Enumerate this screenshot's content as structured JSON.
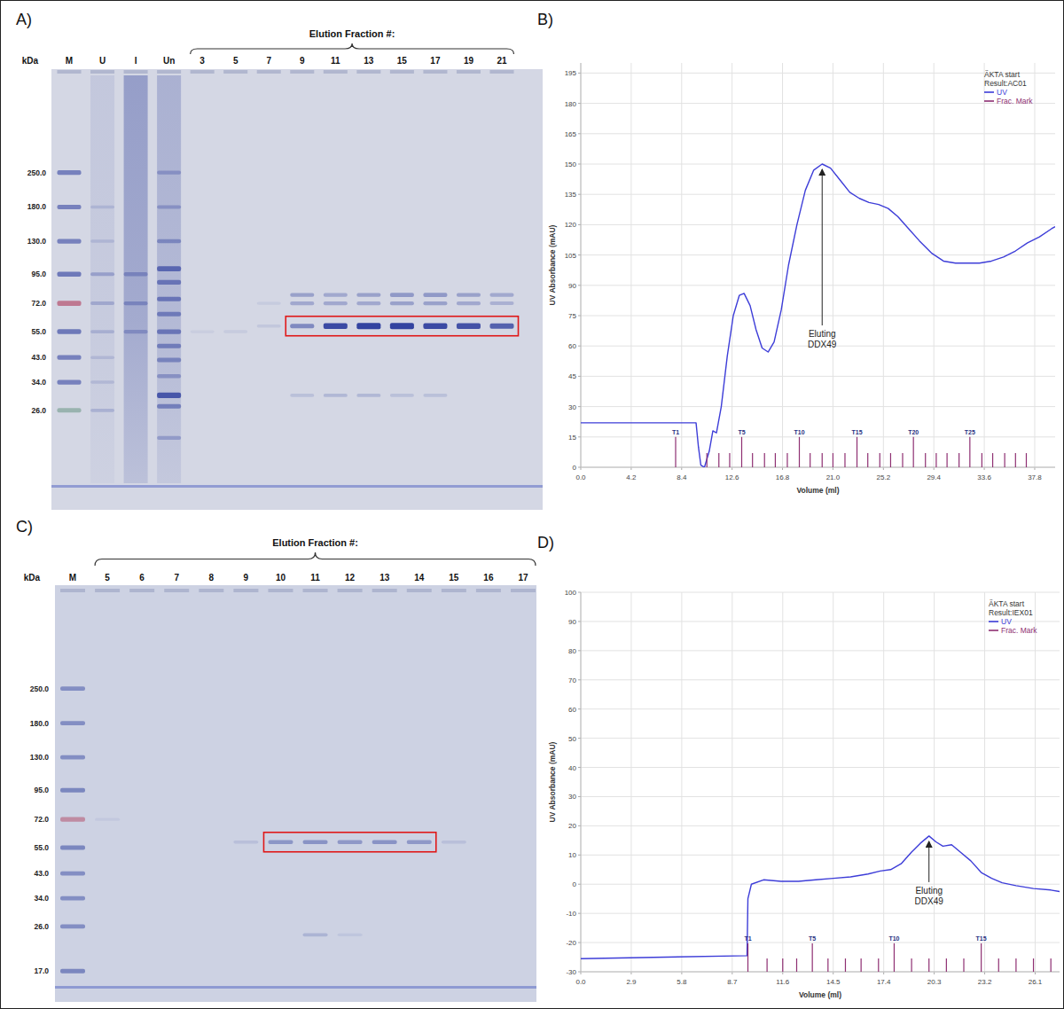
{
  "panels": [
    "A)",
    "B)",
    "C)",
    "D)"
  ],
  "gels": [
    {
      "header": "Elution Fraction #:",
      "axis_label": "kDa",
      "kda_range": [
        630,
        13
      ],
      "band_color": "#2a3b9c",
      "ticks": [
        {
          "value": 250,
          "label": "250.0"
        },
        {
          "value": 180,
          "label": "180.0"
        },
        {
          "value": 130,
          "label": "130.0"
        },
        {
          "value": 95,
          "label": "95.0"
        },
        {
          "value": 72,
          "label": "72.0"
        },
        {
          "value": 55,
          "label": "55.0"
        },
        {
          "value": 43,
          "label": "43.0"
        },
        {
          "value": 34,
          "label": "34.0"
        },
        {
          "value": 26,
          "label": "26.0"
        }
      ],
      "lanes": [
        {
          "label": "M",
          "bands": [
            {
              "kda": 250,
              "intensity": 0.55
            },
            {
              "kda": 180,
              "intensity": 0.55
            },
            {
              "kda": 130,
              "intensity": 0.55
            },
            {
              "kda": 95,
              "intensity": 0.6
            },
            {
              "kda": 72,
              "intensity": 0.7,
              "color": "#b5506e"
            },
            {
              "kda": 55,
              "intensity": 0.6
            },
            {
              "kda": 43,
              "intensity": 0.55
            },
            {
              "kda": 34,
              "intensity": 0.55
            },
            {
              "kda": 26,
              "intensity": 0.5,
              "color": "#5e8f7a"
            }
          ]
        },
        {
          "label": "U",
          "smear": 0.12,
          "bands": [
            {
              "kda": 180,
              "intensity": 0.15
            },
            {
              "kda": 130,
              "intensity": 0.15
            },
            {
              "kda": 95,
              "intensity": 0.3
            },
            {
              "kda": 72,
              "intensity": 0.25
            },
            {
              "kda": 55,
              "intensity": 0.2
            },
            {
              "kda": 43,
              "intensity": 0.15
            },
            {
              "kda": 34,
              "intensity": 0.15
            },
            {
              "kda": 26,
              "intensity": 0.2
            }
          ]
        },
        {
          "label": "I",
          "smear": 0.45,
          "bands": [
            {
              "kda": 95,
              "intensity": 0.35
            },
            {
              "kda": 72,
              "intensity": 0.35
            },
            {
              "kda": 55,
              "intensity": 0.3
            }
          ]
        },
        {
          "label": "Un",
          "smear": 0.3,
          "bands": [
            {
              "kda": 250,
              "intensity": 0.3
            },
            {
              "kda": 180,
              "intensity": 0.3
            },
            {
              "kda": 130,
              "intensity": 0.4
            },
            {
              "kda": 100,
              "intensity": 0.65
            },
            {
              "kda": 88,
              "intensity": 0.55
            },
            {
              "kda": 75,
              "intensity": 0.55
            },
            {
              "kda": 65,
              "intensity": 0.5
            },
            {
              "kda": 55,
              "intensity": 0.55
            },
            {
              "kda": 48,
              "intensity": 0.5
            },
            {
              "kda": 42,
              "intensity": 0.45
            },
            {
              "kda": 36,
              "intensity": 0.35
            },
            {
              "kda": 30,
              "intensity": 0.8
            },
            {
              "kda": 27,
              "intensity": 0.5
            },
            {
              "kda": 20,
              "intensity": 0.3
            }
          ]
        }
      ],
      "fractions": [
        {
          "label": "3",
          "bands": [
            {
              "kda": 55,
              "intensity": 0.06
            }
          ]
        },
        {
          "label": "5",
          "bands": [
            {
              "kda": 55,
              "intensity": 0.08
            }
          ]
        },
        {
          "label": "7",
          "bands": [
            {
              "kda": 72,
              "intensity": 0.08
            },
            {
              "kda": 58,
              "intensity": 0.1
            }
          ]
        },
        {
          "label": "9",
          "bands": [
            {
              "kda": 78,
              "intensity": 0.35
            },
            {
              "kda": 72,
              "intensity": 0.3
            },
            {
              "kda": 58,
              "intensity": 0.5,
              "boxed": true
            },
            {
              "kda": 30,
              "intensity": 0.15
            }
          ]
        },
        {
          "label": "11",
          "bands": [
            {
              "kda": 78,
              "intensity": 0.3
            },
            {
              "kda": 72,
              "intensity": 0.3
            },
            {
              "kda": 58,
              "intensity": 0.9,
              "boxed": true
            },
            {
              "kda": 30,
              "intensity": 0.2
            }
          ]
        },
        {
          "label": "13",
          "bands": [
            {
              "kda": 78,
              "intensity": 0.35
            },
            {
              "kda": 72,
              "intensity": 0.3
            },
            {
              "kda": 58,
              "intensity": 0.95,
              "boxed": true
            },
            {
              "kda": 30,
              "intensity": 0.2
            }
          ]
        },
        {
          "label": "15",
          "bands": [
            {
              "kda": 78,
              "intensity": 0.4
            },
            {
              "kda": 72,
              "intensity": 0.35
            },
            {
              "kda": 58,
              "intensity": 0.95,
              "boxed": true
            },
            {
              "kda": 30,
              "intensity": 0.15
            }
          ]
        },
        {
          "label": "17",
          "bands": [
            {
              "kda": 78,
              "intensity": 0.4
            },
            {
              "kda": 72,
              "intensity": 0.35
            },
            {
              "kda": 58,
              "intensity": 0.9,
              "boxed": true
            },
            {
              "kda": 30,
              "intensity": 0.15
            }
          ]
        },
        {
          "label": "19",
          "bands": [
            {
              "kda": 78,
              "intensity": 0.35
            },
            {
              "kda": 72,
              "intensity": 0.3
            },
            {
              "kda": 58,
              "intensity": 0.85,
              "boxed": true
            }
          ]
        },
        {
          "label": "21",
          "bands": [
            {
              "kda": 78,
              "intensity": 0.3
            },
            {
              "kda": 72,
              "intensity": 0.25
            },
            {
              "kda": 58,
              "intensity": 0.75,
              "boxed": true
            }
          ]
        }
      ]
    },
    {
      "header": "Elution Fraction #:",
      "axis_label": "kDa",
      "kda_range": [
        615,
        15
      ],
      "band_color": "#2a3b9c",
      "ticks": [
        {
          "value": 250,
          "label": "250.0"
        },
        {
          "value": 180,
          "label": "180.0"
        },
        {
          "value": 130,
          "label": "130.0"
        },
        {
          "value": 95,
          "label": "95.0"
        },
        {
          "value": 72,
          "label": "72.0"
        },
        {
          "value": 55,
          "label": "55.0"
        },
        {
          "value": 43,
          "label": "43.0"
        },
        {
          "value": 34,
          "label": "34.0"
        },
        {
          "value": 26,
          "label": "26.0"
        },
        {
          "value": 17,
          "label": "17.0"
        }
      ],
      "lanes": [
        {
          "label": "M",
          "bands": [
            {
              "kda": 250,
              "intensity": 0.45
            },
            {
              "kda": 180,
              "intensity": 0.45
            },
            {
              "kda": 130,
              "intensity": 0.45
            },
            {
              "kda": 95,
              "intensity": 0.5
            },
            {
              "kda": 72,
              "intensity": 0.55,
              "color": "#b5506e"
            },
            {
              "kda": 55,
              "intensity": 0.5
            },
            {
              "kda": 43,
              "intensity": 0.45
            },
            {
              "kda": 34,
              "intensity": 0.45
            },
            {
              "kda": 26,
              "intensity": 0.45
            },
            {
              "kda": 17,
              "intensity": 0.5
            }
          ]
        }
      ],
      "fractions": [
        {
          "label": "5",
          "bands": [
            {
              "kda": 72,
              "intensity": 0.06
            }
          ]
        },
        {
          "label": "6",
          "bands": []
        },
        {
          "label": "7",
          "bands": []
        },
        {
          "label": "8",
          "bands": []
        },
        {
          "label": "9",
          "bands": [
            {
              "kda": 58,
              "intensity": 0.12
            }
          ]
        },
        {
          "label": "10",
          "bands": [
            {
              "kda": 58,
              "intensity": 0.4,
              "boxed": true
            }
          ]
        },
        {
          "label": "11",
          "bands": [
            {
              "kda": 58,
              "intensity": 0.42,
              "boxed": true
            },
            {
              "kda": 24,
              "intensity": 0.2
            }
          ]
        },
        {
          "label": "12",
          "bands": [
            {
              "kda": 58,
              "intensity": 0.38,
              "boxed": true
            },
            {
              "kda": 24,
              "intensity": 0.08
            }
          ]
        },
        {
          "label": "13",
          "bands": [
            {
              "kda": 58,
              "intensity": 0.42,
              "boxed": true
            }
          ]
        },
        {
          "label": "14",
          "bands": [
            {
              "kda": 58,
              "intensity": 0.38,
              "boxed": true
            }
          ]
        },
        {
          "label": "15",
          "bands": [
            {
              "kda": 58,
              "intensity": 0.12
            }
          ]
        },
        {
          "label": "16",
          "bands": []
        },
        {
          "label": "17",
          "bands": []
        }
      ]
    }
  ],
  "chart_data": [
    {
      "type": "line",
      "x_label": "Volume (ml)",
      "y_label": "UV Absorbance (mAU)",
      "grid": true,
      "legend": "upper right",
      "legend_header": [
        "ÄKTA start",
        "Result:AC01"
      ],
      "xlim": [
        0,
        39.5
      ],
      "ylim": [
        0,
        200
      ],
      "xticks": [
        {
          "value": 0,
          "label": "0.0"
        },
        4.2,
        8.4,
        12.6,
        16.8,
        {
          "value": 21,
          "label": "21.0"
        },
        25.2,
        29.4,
        33.6,
        37.8
      ],
      "yticks": [
        0,
        15,
        30,
        45,
        60,
        75,
        90,
        105,
        120,
        135,
        150,
        165,
        180,
        195
      ],
      "series": [
        {
          "name": "UV",
          "color": "#3d3dd8",
          "x": [
            0,
            9.6,
            9.8,
            10.0,
            10.3,
            10.7,
            11.0,
            11.3,
            11.7,
            12.2,
            12.7,
            13.2,
            13.6,
            14.1,
            14.6,
            15.1,
            15.6,
            16.1,
            16.7,
            17.3,
            18.0,
            18.7,
            19.4,
            20.1,
            20.8,
            21.6,
            22.4,
            23.2,
            24.0,
            24.8,
            25.6,
            26.4,
            27.3,
            28.2,
            29.2,
            30.2,
            31.2,
            32.2,
            33.2,
            34.2,
            35.2,
            36.2,
            37.2,
            38.2,
            39.2,
            39.5
          ],
          "values": [
            22,
            22,
            10,
            1,
            0,
            8,
            18,
            17,
            30,
            55,
            75,
            85,
            86,
            80,
            68,
            59,
            57,
            62,
            78,
            100,
            120,
            137,
            147,
            150,
            148,
            142,
            136,
            133,
            131,
            130,
            128,
            124,
            118,
            112,
            106,
            102,
            101,
            101,
            101,
            102,
            104,
            107,
            111,
            114,
            118,
            119
          ]
        },
        {
          "name": "Frac. Mark",
          "type": "rug",
          "color": "#8e2f72",
          "x": [
            7.9,
            10.5,
            11.5,
            12.4,
            13.4,
            14.3,
            15.3,
            16.2,
            17.2,
            18.2,
            19.1,
            20.1,
            21.0,
            22.0,
            23.0,
            23.9,
            24.9,
            25.8,
            26.8,
            27.7,
            28.7,
            29.6,
            30.5,
            31.5,
            32.4,
            33.4,
            34.3,
            35.3,
            36.2,
            37.1
          ],
          "labels": [
            "T1",
            null,
            null,
            null,
            "T5",
            null,
            null,
            null,
            null,
            "T10",
            null,
            null,
            null,
            null,
            "T15",
            null,
            null,
            null,
            null,
            "T20",
            null,
            null,
            null,
            null,
            "T25",
            null,
            null,
            null,
            null,
            null
          ]
        }
      ],
      "annotations": [
        {
          "lines": [
            "Eluting",
            "DDX49"
          ],
          "x": 20.1,
          "y": 150
        }
      ]
    },
    {
      "type": "line",
      "x_label": "Volume (ml)",
      "y_label": "UV Absorbance (mAU)",
      "grid": true,
      "legend": "upper right",
      "legend_header": [
        "ÄKTA start",
        "Result:IEX01"
      ],
      "xlim": [
        0,
        27.5
      ],
      "ylim": [
        -30,
        100
      ],
      "xticks": [
        {
          "value": 0,
          "label": "0.0"
        },
        2.9,
        5.8,
        8.7,
        11.6,
        14.5,
        17.4,
        20.3,
        23.2,
        26.1
      ],
      "yticks": [
        -30,
        -20,
        -10,
        0,
        10,
        20,
        30,
        40,
        50,
        60,
        70,
        80,
        90,
        100
      ],
      "series": [
        {
          "name": "UV",
          "color": "#3d3dd8",
          "x": [
            0,
            9.55,
            9.6,
            9.8,
            10.5,
            11.5,
            12.5,
            13.5,
            14.5,
            15.5,
            16.5,
            17.2,
            17.8,
            18.4,
            19.0,
            19.5,
            20.0,
            20.4,
            20.8,
            21.3,
            21.8,
            22.4,
            23.0,
            23.6,
            24.2,
            25.0,
            26.0,
            27.0,
            27.5
          ],
          "values": [
            -25.5,
            -24.5,
            -5,
            0,
            1.5,
            1,
            1,
            1.5,
            2,
            2.5,
            3.5,
            4.5,
            5,
            7,
            11,
            14,
            16.5,
            14.5,
            13,
            13.5,
            11,
            8,
            4,
            2,
            0.5,
            -0.5,
            -1.5,
            -2,
            -2.5
          ]
        },
        {
          "name": "Frac. Mark",
          "type": "rug",
          "color": "#8e2f72",
          "x": [
            9.6,
            10.7,
            11.6,
            12.4,
            13.3,
            14.2,
            15.2,
            16.1,
            17.1,
            18.0,
            19.0,
            20.0,
            21.0,
            22.0,
            23.0,
            24.0,
            25.0,
            26.0,
            27.0
          ],
          "labels": [
            "T1",
            null,
            null,
            null,
            "T5",
            null,
            null,
            null,
            null,
            "T10",
            null,
            null,
            null,
            null,
            "T15",
            null,
            null,
            null,
            null
          ]
        }
      ],
      "annotations": [
        {
          "lines": [
            "Eluting",
            "DDX49"
          ],
          "x": 20.0,
          "y": 16.5
        }
      ]
    }
  ]
}
